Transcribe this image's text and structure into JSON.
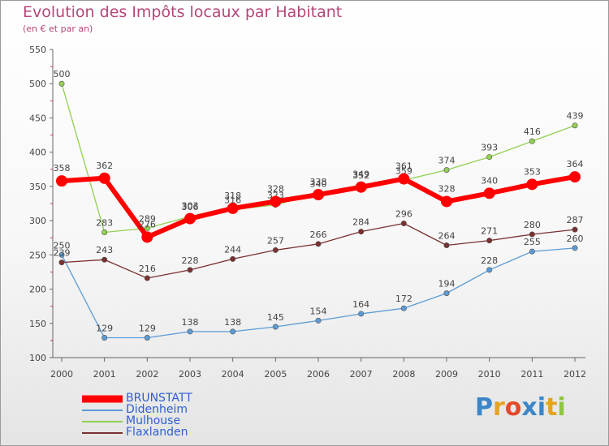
{
  "chart_data": {
    "type": "line",
    "title": "Evolution des Impôts locaux par Habitant",
    "subtitle": "(en € et par an)",
    "xlabel": "",
    "ylabel": "",
    "ylim": [
      100,
      550
    ],
    "yticks": [
      100,
      150,
      200,
      250,
      300,
      350,
      400,
      450,
      500,
      550
    ],
    "categories": [
      "2000",
      "2001",
      "2002",
      "2003",
      "2004",
      "2005",
      "2006",
      "2007",
      "2008",
      "2009",
      "2010",
      "2011",
      "2012"
    ],
    "series": [
      {
        "name": "Didenheim",
        "color": "#5b9bd5",
        "width": 1.3,
        "values": [
          250,
          129,
          129,
          138,
          138,
          145,
          154,
          164,
          172,
          194,
          228,
          255,
          260
        ]
      },
      {
        "name": "Mulhouse",
        "color": "#92d050",
        "width": 1.3,
        "values": [
          500,
          283,
          289,
          306,
          316,
          323,
          340,
          352,
          359,
          374,
          393,
          416,
          439
        ]
      },
      {
        "name": "Flaxlanden",
        "color": "#7b2f2f",
        "width": 1.3,
        "values": [
          239,
          243,
          216,
          228,
          244,
          257,
          266,
          284,
          296,
          264,
          271,
          280,
          287
        ]
      },
      {
        "name": "BRUNSTATT",
        "color": "#ff0000",
        "width": 6,
        "values": [
          358,
          362,
          276,
          303,
          318,
          328,
          338,
          349,
          361,
          328,
          340,
          353,
          364
        ]
      }
    ],
    "legend_order": [
      "BRUNSTATT",
      "Didenheim",
      "Mulhouse",
      "Flaxlanden"
    ],
    "legend_placement": "bottom-left"
  },
  "brand": {
    "letters": [
      "P",
      "r",
      "o",
      "x",
      "i",
      "t",
      "i"
    ],
    "colors": [
      "#3a86c8",
      "#e6a320",
      "#e24a2b",
      "#3a86c8",
      "#3a86c8",
      "#e6a320",
      "#8dc63f"
    ]
  }
}
